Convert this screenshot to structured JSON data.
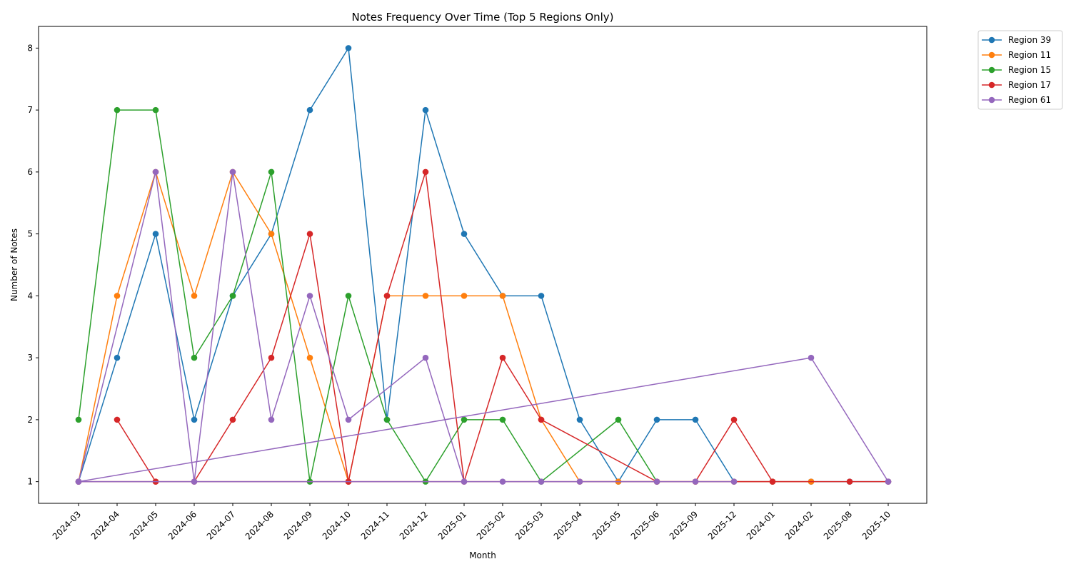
{
  "chart_data": {
    "type": "line",
    "title": "Notes Frequency Over Time (Top 5 Regions Only)",
    "xlabel": "Month",
    "ylabel": "Number of Notes",
    "categories": [
      "2024-03",
      "2024-04",
      "2024-05",
      "2024-06",
      "2024-07",
      "2024-08",
      "2024-09",
      "2024-10",
      "2024-11",
      "2024-12",
      "2025-01",
      "2025-02",
      "2025-03",
      "2025-04",
      "2025-05",
      "2025-06",
      "2025-09",
      "2025-12",
      "2024-01",
      "2024-02",
      "2025-08",
      "2025-10"
    ],
    "y_ticks": [
      1,
      2,
      3,
      4,
      5,
      6,
      7,
      8
    ],
    "ylim": [
      0.65,
      8.35
    ],
    "grid": false,
    "legend_position": "outside-top-right",
    "series": [
      {
        "name": "Region 39",
        "color": "#1f77b4",
        "points": [
          [
            "2024-03",
            1
          ],
          [
            "2024-04",
            3
          ],
          [
            "2024-05",
            5
          ],
          [
            "2024-06",
            2
          ],
          [
            "2024-07",
            4
          ],
          [
            "2024-08",
            5
          ],
          [
            "2024-09",
            7
          ],
          [
            "2024-10",
            8
          ],
          [
            "2024-11",
            2
          ],
          [
            "2024-12",
            7
          ],
          [
            "2025-01",
            5
          ],
          [
            "2025-02",
            4
          ],
          [
            "2025-03",
            4
          ],
          [
            "2025-04",
            2
          ],
          [
            "2025-05",
            1
          ],
          [
            "2025-06",
            2
          ],
          [
            "2025-09",
            2
          ],
          [
            "2025-12",
            1
          ],
          [
            "2024-01",
            1
          ],
          [
            "2024-02",
            1
          ],
          [
            "2025-08",
            1
          ],
          [
            "2025-10",
            1
          ]
        ]
      },
      {
        "name": "Region 11",
        "color": "#ff7f0e",
        "points": [
          [
            "2024-03",
            1
          ],
          [
            "2024-04",
            4
          ],
          [
            "2024-05",
            6
          ],
          [
            "2024-06",
            4
          ],
          [
            "2024-07",
            6
          ],
          [
            "2024-08",
            5
          ],
          [
            "2024-09",
            3
          ],
          [
            "2024-10",
            1
          ],
          [
            "2024-11",
            4
          ],
          [
            "2024-12",
            4
          ],
          [
            "2025-01",
            4
          ],
          [
            "2025-02",
            4
          ],
          [
            "2025-03",
            2
          ],
          [
            "2025-04",
            1
          ],
          [
            "2025-05",
            1
          ],
          [
            "2025-06",
            1
          ],
          [
            "2025-09",
            1
          ],
          [
            "2025-12",
            1
          ],
          [
            "2024-01",
            1
          ],
          [
            "2024-02",
            1
          ]
        ]
      },
      {
        "name": "Region 15",
        "color": "#2ca02c",
        "points": [
          [
            "2024-03",
            2
          ],
          [
            "2024-04",
            7
          ],
          [
            "2024-05",
            7
          ],
          [
            "2024-06",
            3
          ],
          [
            "2024-07",
            4
          ],
          [
            "2024-08",
            6
          ],
          [
            "2024-09",
            1
          ],
          [
            "2024-10",
            4
          ],
          [
            "2024-11",
            2
          ],
          [
            "2024-12",
            1
          ],
          [
            "2025-01",
            2
          ],
          [
            "2025-02",
            2
          ],
          [
            "2025-03",
            1
          ],
          [
            "2025-05",
            2
          ],
          [
            "2025-06",
            1
          ]
        ]
      },
      {
        "name": "Region 17",
        "color": "#d62728",
        "points": [
          [
            "2024-04",
            2
          ],
          [
            "2024-05",
            1
          ],
          [
            "2024-06",
            1
          ],
          [
            "2024-07",
            2
          ],
          [
            "2024-08",
            3
          ],
          [
            "2024-09",
            5
          ],
          [
            "2024-10",
            1
          ],
          [
            "2024-11",
            4
          ],
          [
            "2024-12",
            6
          ],
          [
            "2025-01",
            1
          ],
          [
            "2025-02",
            3
          ],
          [
            "2025-03",
            2
          ],
          [
            "2025-06",
            1
          ],
          [
            "2025-09",
            1
          ],
          [
            "2025-12",
            2
          ],
          [
            "2024-01",
            1
          ],
          [
            "2025-08",
            1
          ],
          [
            "2024-03",
            1
          ],
          [
            "2024-05",
            1
          ],
          [
            "2024-10",
            1
          ],
          [
            "2025-10",
            1
          ]
        ]
      },
      {
        "name": "Region 61",
        "color": "#9467bd",
        "points": [
          [
            "2024-03",
            1
          ],
          [
            "2024-05",
            6
          ],
          [
            "2024-06",
            1
          ],
          [
            "2024-07",
            6
          ],
          [
            "2024-08",
            2
          ],
          [
            "2024-09",
            4
          ],
          [
            "2024-10",
            2
          ],
          [
            "2024-12",
            3
          ],
          [
            "2025-01",
            1
          ],
          [
            "2025-02",
            1
          ],
          [
            "2025-03",
            1
          ],
          [
            "2025-04",
            1
          ],
          [
            "2025-06",
            1
          ],
          [
            "2025-09",
            1
          ],
          [
            "2025-12",
            1
          ],
          [
            "2024-03",
            1
          ],
          [
            "2024-02",
            3
          ],
          [
            "2025-10",
            1
          ]
        ]
      }
    ]
  }
}
